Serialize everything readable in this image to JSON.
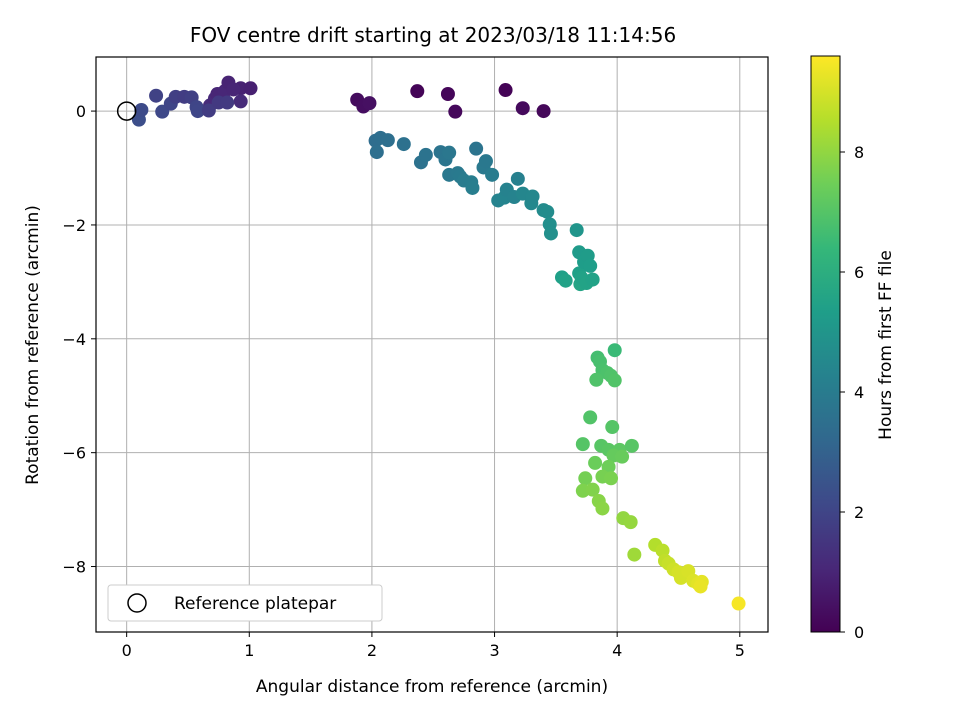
{
  "chart_data": {
    "type": "scatter",
    "title": "FOV centre drift starting at 2023/03/18 11:14:56",
    "xlabel": "Angular distance from reference (arcmin)",
    "ylabel": "Rotation from reference (arcmin)",
    "colorbar_label": "Hours from first FF file",
    "colormap": "viridis",
    "xlim": [
      -0.25,
      5.23
    ],
    "ylim": [
      -9.15,
      0.95
    ],
    "xticks": [
      0,
      1,
      2,
      3,
      4,
      5
    ],
    "yticks": [
      0,
      -2,
      -4,
      -6,
      -8
    ],
    "colorbar_range": [
      0,
      9.6
    ],
    "colorbar_ticks": [
      0,
      2,
      4,
      6,
      8
    ],
    "grid": true,
    "legend": {
      "location": "lower-left",
      "entries": [
        "Reference platepar"
      ]
    },
    "reference_point": {
      "x": 0,
      "y": 0
    },
    "points": [
      {
        "x": 1.88,
        "y": 0.2,
        "c": 0.3
      },
      {
        "x": 1.93,
        "y": 0.08,
        "c": 0.35
      },
      {
        "x": 1.98,
        "y": 0.14,
        "c": 0.4
      },
      {
        "x": 2.37,
        "y": 0.35,
        "c": 0.1
      },
      {
        "x": 2.62,
        "y": 0.3,
        "c": 0.15
      },
      {
        "x": 2.68,
        "y": -0.01,
        "c": 0.2
      },
      {
        "x": 3.09,
        "y": 0.37,
        "c": 0.05
      },
      {
        "x": 3.23,
        "y": 0.05,
        "c": 0.25
      },
      {
        "x": 3.4,
        "y": 0.0,
        "c": 0.18
      },
      {
        "x": 0.68,
        "y": 0.1,
        "c": 1.2
      },
      {
        "x": 0.72,
        "y": 0.22,
        "c": 1.1
      },
      {
        "x": 0.74,
        "y": 0.3,
        "c": 1.0
      },
      {
        "x": 0.8,
        "y": 0.35,
        "c": 1.05
      },
      {
        "x": 0.83,
        "y": 0.5,
        "c": 0.95
      },
      {
        "x": 0.93,
        "y": 0.4,
        "c": 0.9
      },
      {
        "x": 1.01,
        "y": 0.4,
        "c": 0.85
      },
      {
        "x": 0.93,
        "y": 0.17,
        "c": 1.15
      },
      {
        "x": 0.87,
        "y": 0.38,
        "c": 1.0
      },
      {
        "x": 0.1,
        "y": -0.15,
        "c": 2.3
      },
      {
        "x": 0.12,
        "y": 0.02,
        "c": 2.2
      },
      {
        "x": 0.24,
        "y": 0.27,
        "c": 1.9
      },
      {
        "x": 0.29,
        "y": -0.01,
        "c": 2.1
      },
      {
        "x": 0.36,
        "y": 0.13,
        "c": 2.0
      },
      {
        "x": 0.4,
        "y": 0.25,
        "c": 1.8
      },
      {
        "x": 0.47,
        "y": 0.25,
        "c": 1.75
      },
      {
        "x": 0.53,
        "y": 0.24,
        "c": 1.85
      },
      {
        "x": 0.57,
        "y": 0.07,
        "c": 2.0
      },
      {
        "x": 0.58,
        "y": 0.0,
        "c": 2.05
      },
      {
        "x": 0.67,
        "y": 0.01,
        "c": 1.7
      },
      {
        "x": 0.75,
        "y": 0.15,
        "c": 1.6
      },
      {
        "x": 0.82,
        "y": 0.15,
        "c": 1.65
      },
      {
        "x": 2.03,
        "y": -0.52,
        "c": 3.4
      },
      {
        "x": 2.04,
        "y": -0.72,
        "c": 3.5
      },
      {
        "x": 2.07,
        "y": -0.47,
        "c": 3.45
      },
      {
        "x": 2.13,
        "y": -0.51,
        "c": 3.5
      },
      {
        "x": 2.26,
        "y": -0.58,
        "c": 3.55
      },
      {
        "x": 2.4,
        "y": -0.9,
        "c": 3.6
      },
      {
        "x": 2.44,
        "y": -0.77,
        "c": 3.65
      },
      {
        "x": 2.56,
        "y": -0.72,
        "c": 3.7
      },
      {
        "x": 2.6,
        "y": -0.85,
        "c": 3.75
      },
      {
        "x": 2.63,
        "y": -0.73,
        "c": 3.8
      },
      {
        "x": 2.63,
        "y": -1.12,
        "c": 3.85
      },
      {
        "x": 2.7,
        "y": -1.09,
        "c": 3.9
      },
      {
        "x": 2.72,
        "y": -1.15,
        "c": 3.95
      },
      {
        "x": 2.75,
        "y": -1.22,
        "c": 4.0
      },
      {
        "x": 2.81,
        "y": -1.25,
        "c": 4.05
      },
      {
        "x": 2.82,
        "y": -1.35,
        "c": 4.1
      },
      {
        "x": 2.85,
        "y": -0.66,
        "c": 3.7
      },
      {
        "x": 2.91,
        "y": -0.99,
        "c": 3.9
      },
      {
        "x": 2.93,
        "y": -0.88,
        "c": 3.85
      },
      {
        "x": 2.98,
        "y": -1.12,
        "c": 4.0
      },
      {
        "x": 3.03,
        "y": -1.57,
        "c": 4.3
      },
      {
        "x": 3.08,
        "y": -1.52,
        "c": 4.35
      },
      {
        "x": 3.1,
        "y": -1.38,
        "c": 4.25
      },
      {
        "x": 3.16,
        "y": -1.51,
        "c": 4.3
      },
      {
        "x": 3.19,
        "y": -1.19,
        "c": 4.2
      },
      {
        "x": 3.23,
        "y": -1.45,
        "c": 4.4
      },
      {
        "x": 3.3,
        "y": -1.62,
        "c": 4.5
      },
      {
        "x": 3.31,
        "y": -1.5,
        "c": 4.45
      },
      {
        "x": 3.4,
        "y": -1.74,
        "c": 4.6
      },
      {
        "x": 3.43,
        "y": -1.77,
        "c": 4.65
      },
      {
        "x": 3.45,
        "y": -1.99,
        "c": 4.75
      },
      {
        "x": 3.46,
        "y": -2.15,
        "c": 4.8
      },
      {
        "x": 3.55,
        "y": -2.92,
        "c": 5.4
      },
      {
        "x": 3.58,
        "y": -2.98,
        "c": 5.5
      },
      {
        "x": 3.67,
        "y": -2.09,
        "c": 5.0
      },
      {
        "x": 3.69,
        "y": -2.48,
        "c": 5.2
      },
      {
        "x": 3.69,
        "y": -2.85,
        "c": 5.4
      },
      {
        "x": 3.7,
        "y": -3.04,
        "c": 5.6
      },
      {
        "x": 3.71,
        "y": -2.93,
        "c": 5.5
      },
      {
        "x": 3.73,
        "y": -2.65,
        "c": 5.3
      },
      {
        "x": 3.75,
        "y": -3.02,
        "c": 5.55
      },
      {
        "x": 3.76,
        "y": -2.54,
        "c": 5.25
      },
      {
        "x": 3.78,
        "y": -2.72,
        "c": 5.35
      },
      {
        "x": 3.8,
        "y": -2.96,
        "c": 5.5
      },
      {
        "x": 3.98,
        "y": -4.2,
        "c": 6.5
      },
      {
        "x": 3.84,
        "y": -4.33,
        "c": 6.7
      },
      {
        "x": 3.86,
        "y": -4.4,
        "c": 6.75
      },
      {
        "x": 3.88,
        "y": -4.55,
        "c": 6.8
      },
      {
        "x": 3.92,
        "y": -4.6,
        "c": 6.85
      },
      {
        "x": 3.95,
        "y": -4.65,
        "c": 6.9
      },
      {
        "x": 3.98,
        "y": -4.73,
        "c": 6.95
      },
      {
        "x": 3.83,
        "y": -4.72,
        "c": 6.9
      },
      {
        "x": 3.78,
        "y": -5.38,
        "c": 6.95
      },
      {
        "x": 3.96,
        "y": -5.55,
        "c": 7.0
      },
      {
        "x": 3.72,
        "y": -5.85,
        "c": 7.0
      },
      {
        "x": 3.87,
        "y": -5.88,
        "c": 7.05
      },
      {
        "x": 3.93,
        "y": -5.95,
        "c": 7.1
      },
      {
        "x": 4.02,
        "y": -5.95,
        "c": 7.15
      },
      {
        "x": 4.12,
        "y": -5.88,
        "c": 7.05
      },
      {
        "x": 3.97,
        "y": -6.05,
        "c": 7.3
      },
      {
        "x": 4.04,
        "y": -6.07,
        "c": 7.35
      },
      {
        "x": 3.82,
        "y": -6.18,
        "c": 7.4
      },
      {
        "x": 3.93,
        "y": -6.25,
        "c": 7.45
      },
      {
        "x": 3.74,
        "y": -6.45,
        "c": 7.55
      },
      {
        "x": 3.88,
        "y": -6.42,
        "c": 7.6
      },
      {
        "x": 3.95,
        "y": -6.45,
        "c": 7.65
      },
      {
        "x": 3.72,
        "y": -6.67,
        "c": 7.7
      },
      {
        "x": 3.8,
        "y": -6.65,
        "c": 7.75
      },
      {
        "x": 3.85,
        "y": -6.85,
        "c": 7.85
      },
      {
        "x": 3.88,
        "y": -6.98,
        "c": 7.9
      },
      {
        "x": 4.05,
        "y": -7.15,
        "c": 8.0
      },
      {
        "x": 4.11,
        "y": -7.22,
        "c": 8.05
      },
      {
        "x": 4.14,
        "y": -7.79,
        "c": 8.2
      },
      {
        "x": 4.31,
        "y": -7.62,
        "c": 8.5
      },
      {
        "x": 4.37,
        "y": -7.72,
        "c": 8.6
      },
      {
        "x": 4.39,
        "y": -7.9,
        "c": 8.7
      },
      {
        "x": 4.42,
        "y": -7.95,
        "c": 8.8
      },
      {
        "x": 4.46,
        "y": -8.05,
        "c": 8.9
      },
      {
        "x": 4.5,
        "y": -8.1,
        "c": 9.0
      },
      {
        "x": 4.52,
        "y": -8.2,
        "c": 9.0
      },
      {
        "x": 4.58,
        "y": -8.08,
        "c": 9.05
      },
      {
        "x": 4.62,
        "y": -8.25,
        "c": 9.1
      },
      {
        "x": 4.66,
        "y": -8.3,
        "c": 9.2
      },
      {
        "x": 4.69,
        "y": -8.27,
        "c": 9.25
      },
      {
        "x": 4.68,
        "y": -8.35,
        "c": 9.3
      },
      {
        "x": 4.99,
        "y": -8.65,
        "c": 9.5
      }
    ],
    "colorbar_stops": [
      "#440154",
      "#482878",
      "#3e4989",
      "#31688e",
      "#26828e",
      "#1f9e89",
      "#35b779",
      "#6ece58",
      "#b5de2b",
      "#fde725"
    ]
  }
}
